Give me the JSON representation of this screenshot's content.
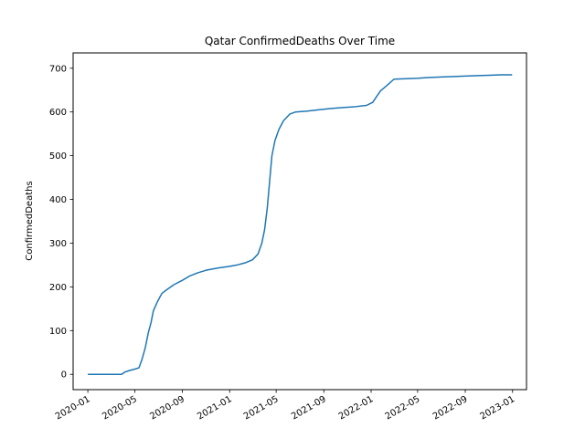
{
  "chart_data": {
    "type": "line",
    "title": "Qatar  ConfirmedDeaths Over Time",
    "xlabel": "",
    "ylabel": "ConfirmedDeaths",
    "xlim": [
      "2019-11-24",
      "2023-02-06"
    ],
    "ylim": [
      -35,
      735
    ],
    "x_ticks": [
      "2020-01",
      "2020-05",
      "2020-09",
      "2021-01",
      "2021-05",
      "2021-09",
      "2022-01",
      "2022-05",
      "2022-09",
      "2023-01"
    ],
    "y_ticks": [
      0,
      100,
      200,
      300,
      400,
      500,
      600,
      700
    ],
    "grid": false,
    "series": [
      {
        "color": "#1f77b4",
        "points": [
          [
            "2020-01-01",
            0
          ],
          [
            "2020-03-28",
            0
          ],
          [
            "2020-04-05",
            5
          ],
          [
            "2020-04-15",
            8
          ],
          [
            "2020-05-01",
            12
          ],
          [
            "2020-05-12",
            15
          ],
          [
            "2020-05-20",
            35
          ],
          [
            "2020-05-28",
            60
          ],
          [
            "2020-06-05",
            95
          ],
          [
            "2020-06-12",
            118
          ],
          [
            "2020-06-18",
            145
          ],
          [
            "2020-06-28",
            165
          ],
          [
            "2020-07-10",
            185
          ],
          [
            "2020-07-25",
            195
          ],
          [
            "2020-08-10",
            205
          ],
          [
            "2020-09-01",
            215
          ],
          [
            "2020-09-20",
            225
          ],
          [
            "2020-10-10",
            232
          ],
          [
            "2020-11-01",
            238
          ],
          [
            "2020-12-01",
            243
          ],
          [
            "2021-01-01",
            247
          ],
          [
            "2021-01-20",
            250
          ],
          [
            "2021-02-10",
            255
          ],
          [
            "2021-03-01",
            262
          ],
          [
            "2021-03-15",
            275
          ],
          [
            "2021-03-25",
            300
          ],
          [
            "2021-04-01",
            330
          ],
          [
            "2021-04-08",
            380
          ],
          [
            "2021-04-14",
            440
          ],
          [
            "2021-04-20",
            500
          ],
          [
            "2021-04-28",
            535
          ],
          [
            "2021-05-08",
            560
          ],
          [
            "2021-05-20",
            580
          ],
          [
            "2021-06-05",
            595
          ],
          [
            "2021-06-20",
            600
          ],
          [
            "2021-07-20",
            602
          ],
          [
            "2021-08-20",
            605
          ],
          [
            "2021-09-20",
            608
          ],
          [
            "2021-10-20",
            610
          ],
          [
            "2021-11-20",
            612
          ],
          [
            "2021-12-20",
            615
          ],
          [
            "2022-01-05",
            622
          ],
          [
            "2022-01-15",
            635
          ],
          [
            "2022-01-25",
            648
          ],
          [
            "2022-02-10",
            660
          ],
          [
            "2022-03-01",
            675
          ],
          [
            "2022-04-01",
            676
          ],
          [
            "2022-05-01",
            677
          ],
          [
            "2022-06-01",
            679
          ],
          [
            "2022-07-01",
            680
          ],
          [
            "2022-08-01",
            681
          ],
          [
            "2022-09-01",
            682
          ],
          [
            "2022-10-01",
            683
          ],
          [
            "2022-11-01",
            684
          ],
          [
            "2022-12-01",
            685
          ],
          [
            "2022-12-31",
            685
          ]
        ]
      }
    ]
  }
}
